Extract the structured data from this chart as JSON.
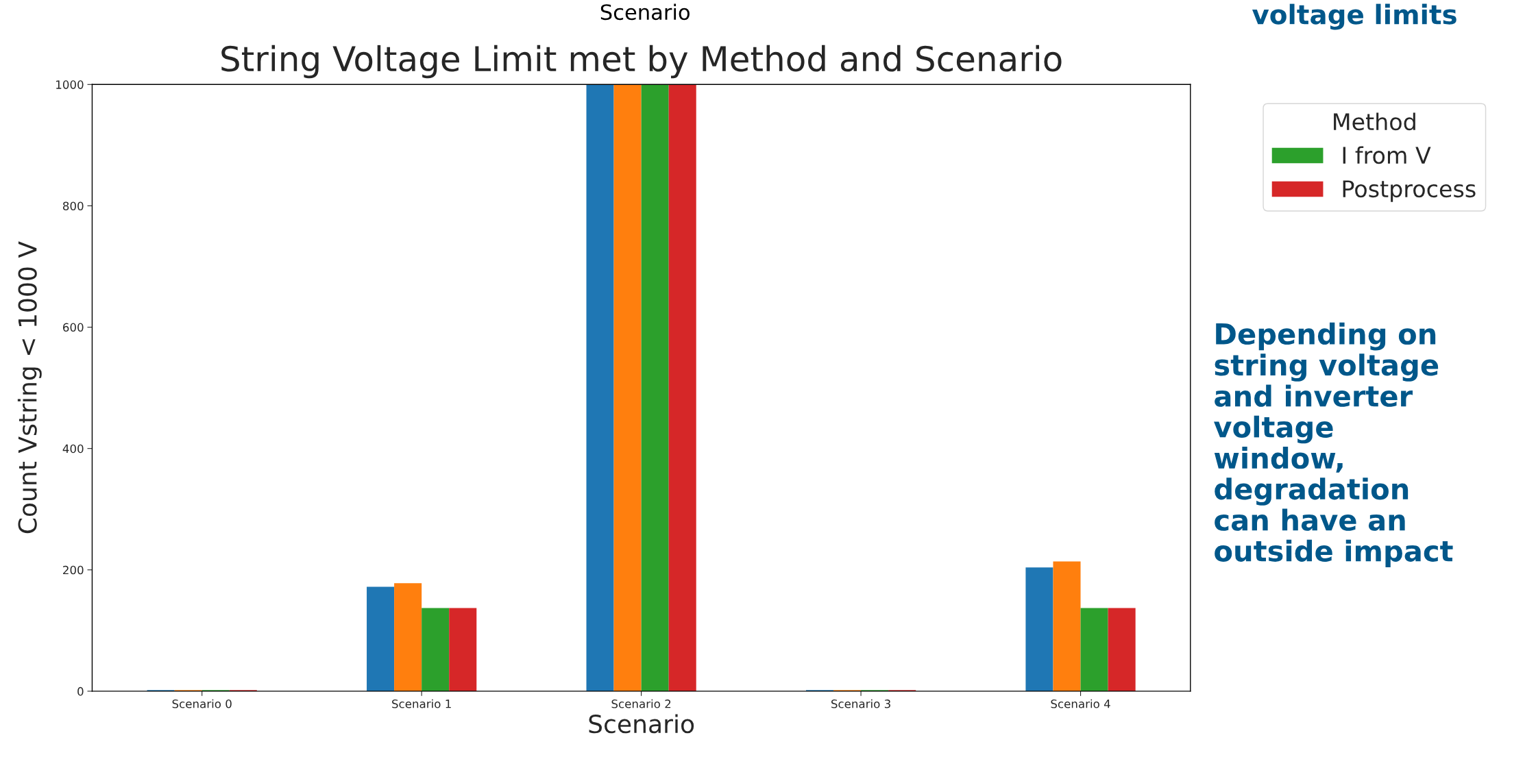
{
  "chart_data": {
    "type": "bar",
    "title": "String Voltage Limit met by Method and Scenario",
    "xlabel": "Scenario",
    "ylabel": "Count Vstring < 1000 V",
    "legend_title": "Method",
    "legend": "top right",
    "categories": [
      "Scenario 0",
      "Scenario 1",
      "Scenario 2",
      "Scenario 3",
      "Scenario 4"
    ],
    "series": [
      {
        "color": "#1f77b4",
        "values": [
          2,
          172,
          1000,
          2,
          204
        ]
      },
      {
        "color": "#ff7f0e",
        "values": [
          2,
          178,
          1000,
          2,
          214
        ]
      },
      {
        "name": "I from V",
        "color": "#2ca02c",
        "values": [
          2,
          137,
          1000,
          2,
          137
        ]
      },
      {
        "name": "Postprocess",
        "color": "#d62728",
        "values": [
          2,
          137,
          1000,
          2,
          137
        ]
      }
    ],
    "ylim": [
      0,
      1000
    ],
    "yticks": [
      0,
      200,
      400,
      600,
      800,
      1000
    ],
    "grid": false,
    "annotations": [
      "Scenario",
      "voltage limits",
      "Depending on\nstring voltage\nand inverter\nvoltage\nwindow,\ndegradation\ncan have an\noutside impact"
    ]
  }
}
